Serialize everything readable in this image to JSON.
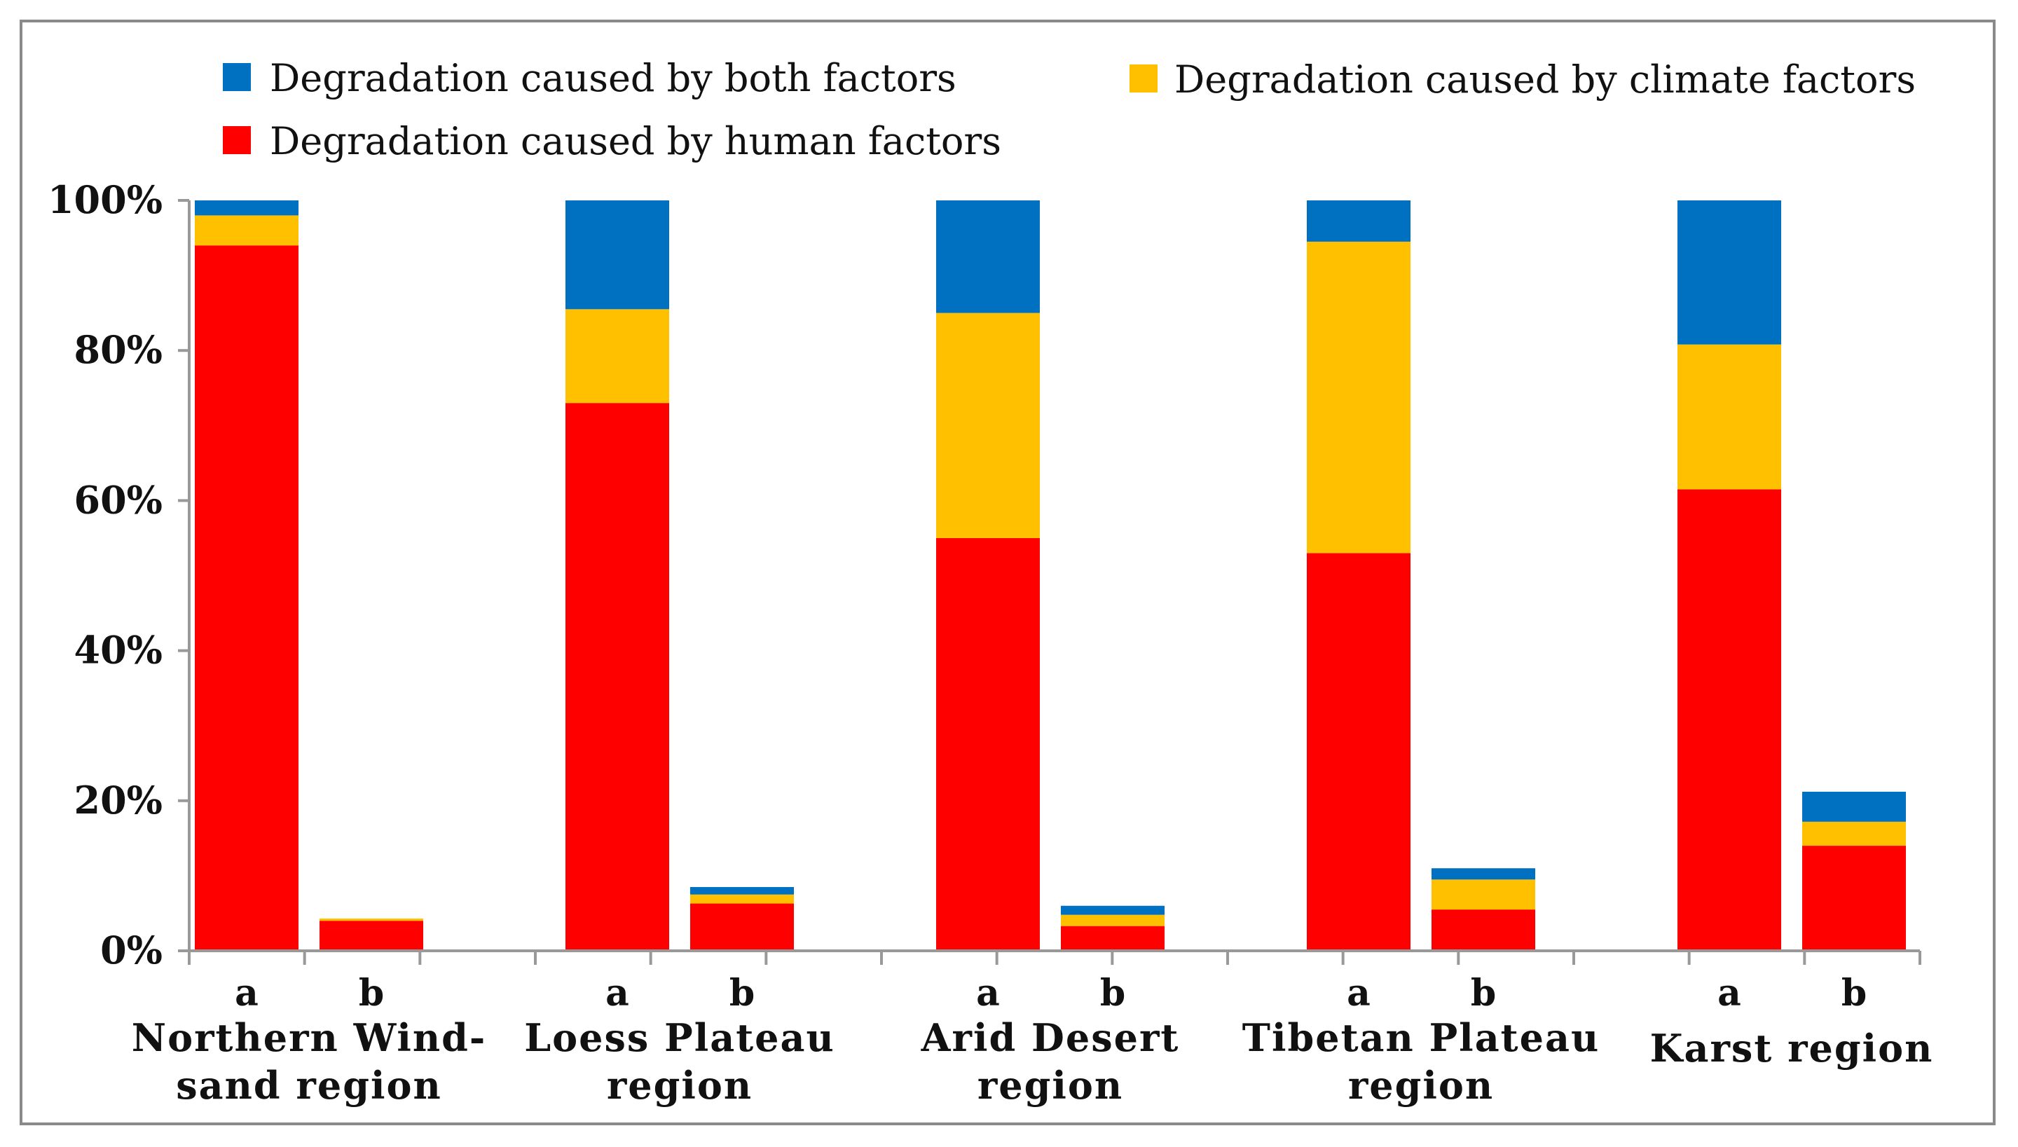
{
  "chart_data": {
    "type": "bar",
    "stacked": true,
    "title": "",
    "xlabel": "",
    "ylabel": "",
    "ylim": [
      0,
      100
    ],
    "yticks": [
      "0%",
      "20%",
      "40%",
      "60%",
      "80%",
      "100%"
    ],
    "ytick_values": [
      0,
      20,
      40,
      60,
      80,
      100
    ],
    "legend": [
      {
        "key": "both",
        "label": "Degradation caused by both factors",
        "color": "#0070C0"
      },
      {
        "key": "climate",
        "label": "Degradation caused by climate factors",
        "color": "#FFC000"
      },
      {
        "key": "human",
        "label": "Degradation caused by human factors",
        "color": "#FF0000"
      }
    ],
    "groups": [
      {
        "name": "Northern Wind-sand region",
        "label_lines": [
          "Northern Wind-",
          "sand region"
        ],
        "bars": [
          {
            "sub": "a",
            "human": 94,
            "climate": 4,
            "both": 2
          },
          {
            "sub": "b",
            "human": 4,
            "climate": 0.3,
            "both": 0
          }
        ]
      },
      {
        "name": "Loess Plateau region",
        "label_lines": [
          "Loess Plateau",
          "region"
        ],
        "bars": [
          {
            "sub": "a",
            "human": 73,
            "climate": 12.5,
            "both": 14.5
          },
          {
            "sub": "b",
            "human": 6.3,
            "climate": 1.2,
            "both": 1
          }
        ]
      },
      {
        "name": "Arid Desert region",
        "label_lines": [
          "Arid Desert",
          "region"
        ],
        "bars": [
          {
            "sub": "a",
            "human": 55,
            "climate": 30,
            "both": 15
          },
          {
            "sub": "b",
            "human": 3.3,
            "climate": 1.5,
            "both": 1.2
          }
        ]
      },
      {
        "name": "Tibetan Plateau region",
        "label_lines": [
          "Tibetan Plateau",
          "region"
        ],
        "bars": [
          {
            "sub": "a",
            "human": 53,
            "climate": 41.5,
            "both": 5.5
          },
          {
            "sub": "b",
            "human": 5.5,
            "climate": 4,
            "both": 1.5
          }
        ]
      },
      {
        "name": "Karst region",
        "label_lines": [
          "Karst region"
        ],
        "bars": [
          {
            "sub": "a",
            "human": 61.5,
            "climate": 19.3,
            "both": 19.2
          },
          {
            "sub": "b",
            "human": 14,
            "climate": 3.2,
            "both": 4
          }
        ]
      }
    ]
  }
}
